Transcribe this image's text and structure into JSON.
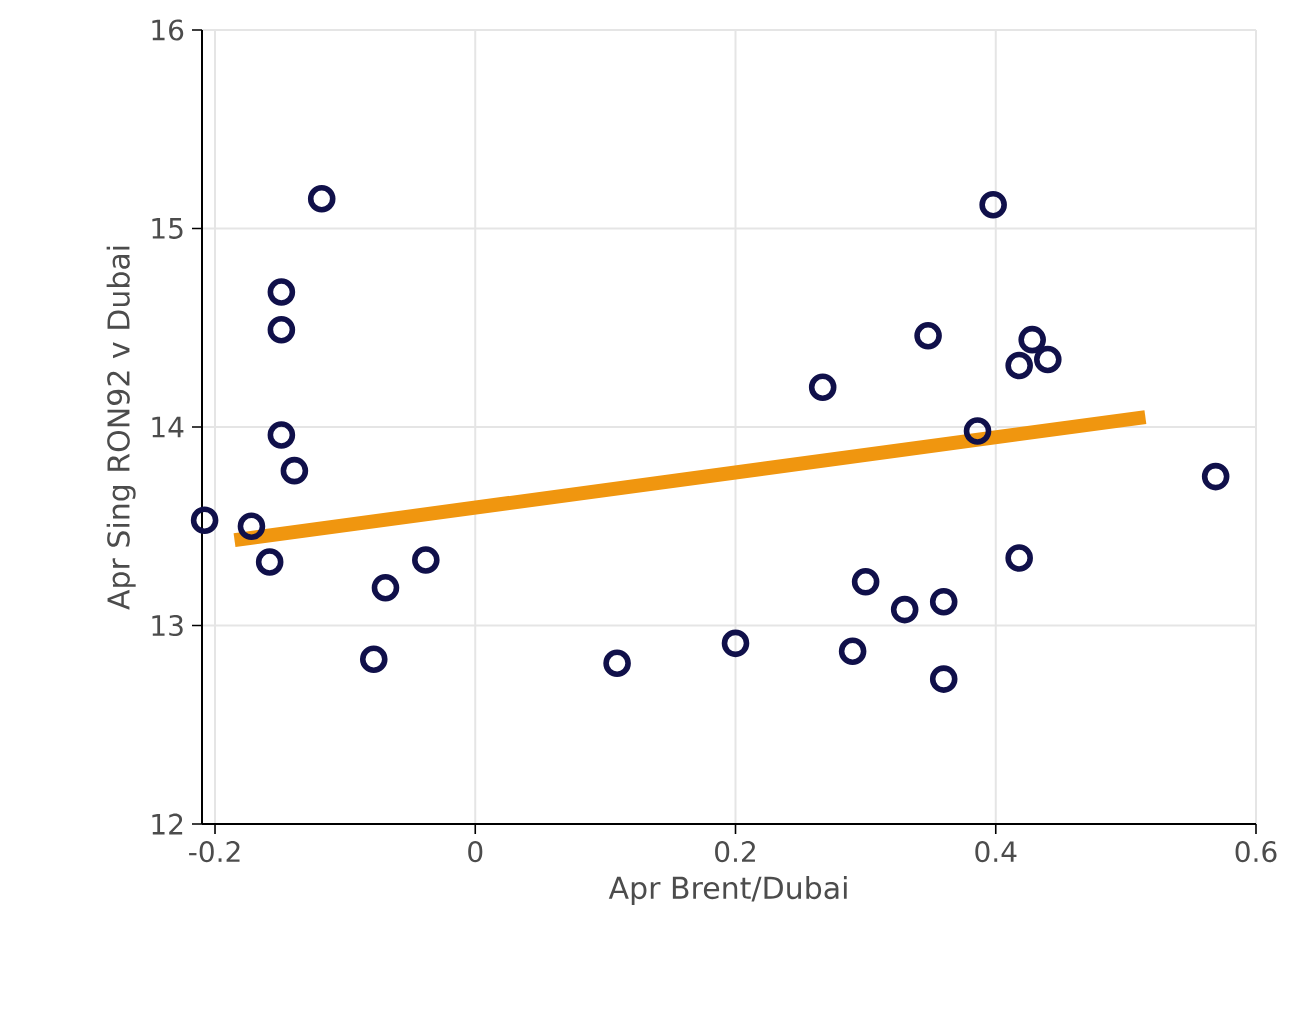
{
  "chart_data": {
    "type": "scatter",
    "xlabel": "Apr Brent/Dubai",
    "ylabel": "Apr Sing RON92 v Dubai",
    "xlim": [
      -0.21,
      0.6
    ],
    "ylim": [
      12,
      16
    ],
    "xticks": [
      -0.2,
      0,
      0.2,
      0.4,
      0.6
    ],
    "yticks": [
      12,
      13,
      14,
      15,
      16
    ],
    "grid": true,
    "marker": "circle",
    "series": [
      {
        "color": "#10104a",
        "x": [
          -0.208,
          -0.172,
          -0.158,
          -0.149,
          -0.149,
          -0.149,
          -0.139,
          -0.118,
          -0.078,
          -0.069,
          -0.038,
          0.109,
          0.2,
          0.267,
          0.29,
          0.3,
          0.33,
          0.348,
          0.36,
          0.36,
          0.386,
          0.398,
          0.428,
          0.418,
          0.44,
          0.418,
          0.569
        ],
        "values": [
          13.53,
          13.5,
          13.32,
          14.68,
          14.49,
          13.96,
          13.78,
          15.15,
          12.83,
          13.19,
          13.33,
          12.81,
          12.91,
          14.2,
          12.87,
          13.22,
          13.08,
          14.46,
          13.12,
          12.73,
          13.98,
          15.12,
          14.44,
          14.31,
          14.34,
          13.34,
          13.75
        ]
      },
      {
        "type": "line",
        "color": "#f0960f",
        "marker": "none",
        "x": [
          -0.185,
          0.515
        ],
        "values": [
          13.43,
          14.05
        ]
      }
    ]
  }
}
